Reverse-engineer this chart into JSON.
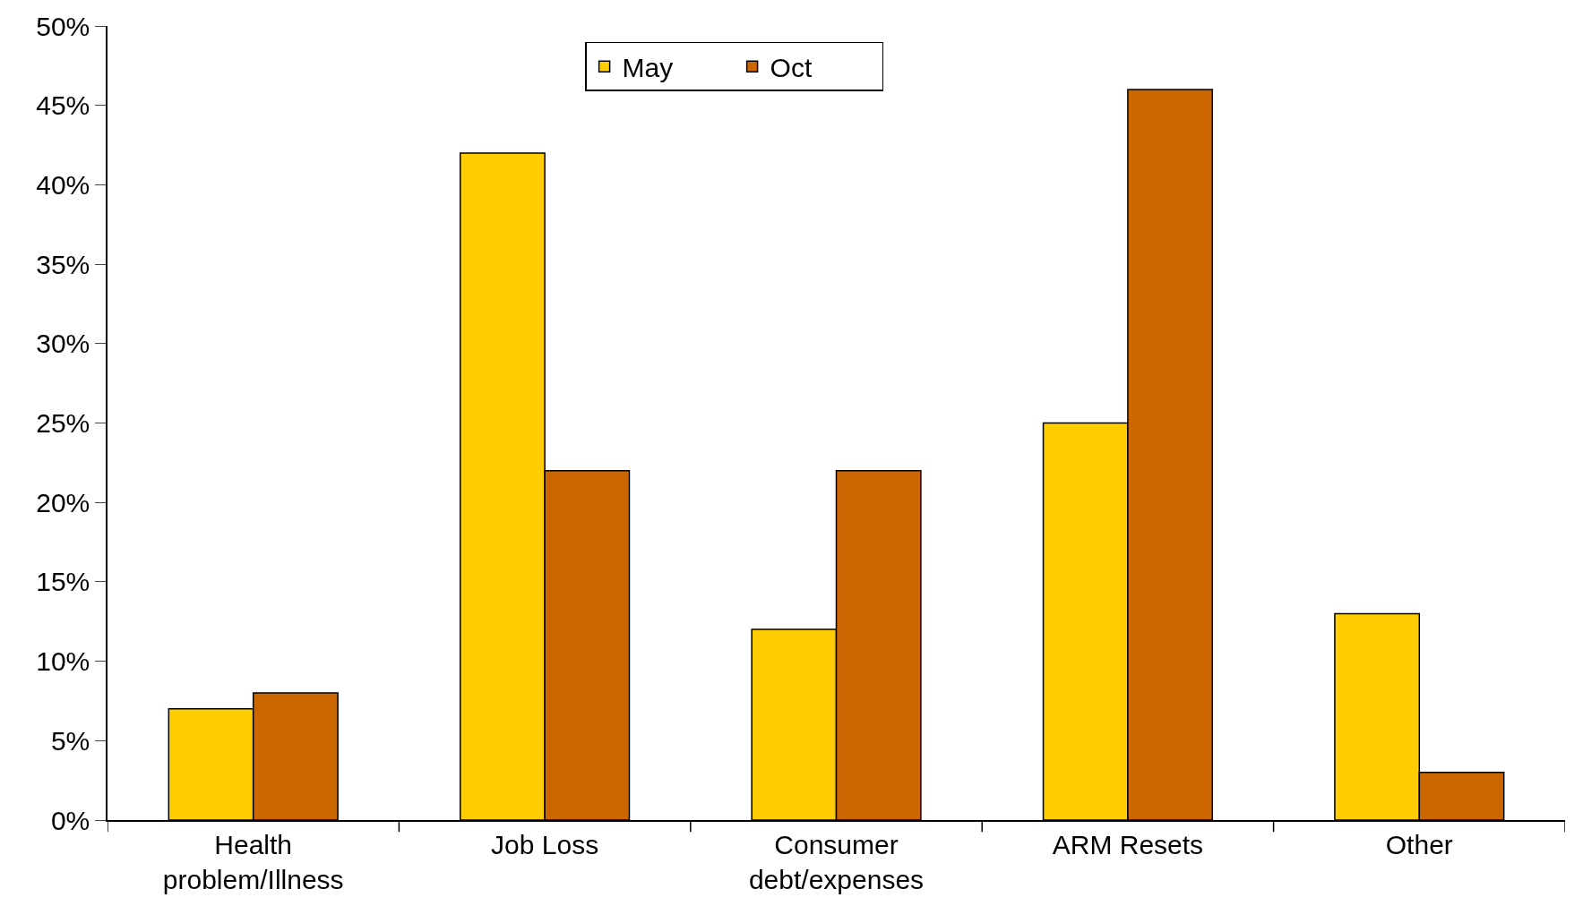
{
  "chart_data": {
    "type": "bar",
    "categories": [
      "Health\nproblem/Illness",
      "Job Loss",
      "Consumer\ndebt/expenses",
      "ARM Resets",
      "Other"
    ],
    "series": [
      {
        "name": "May",
        "color": "#ffcc00",
        "values": [
          7,
          42,
          12,
          25,
          13
        ]
      },
      {
        "name": "Oct",
        "color": "#cc6600",
        "values": [
          8,
          22,
          22,
          46,
          3
        ]
      }
    ],
    "ylim": [
      0,
      50
    ],
    "yticks": [
      {
        "value": 0,
        "label": "0%"
      },
      {
        "value": 5,
        "label": "5%"
      },
      {
        "value": 10,
        "label": "10%"
      },
      {
        "value": 15,
        "label": "15%"
      },
      {
        "value": 20,
        "label": "20%"
      },
      {
        "value": 25,
        "label": "25%"
      },
      {
        "value": 30,
        "label": "30%"
      },
      {
        "value": 35,
        "label": "35%"
      },
      {
        "value": 40,
        "label": "40%"
      },
      {
        "value": 45,
        "label": "45%"
      },
      {
        "value": 50,
        "label": "50%"
      }
    ],
    "grid": false,
    "legend": "top"
  }
}
